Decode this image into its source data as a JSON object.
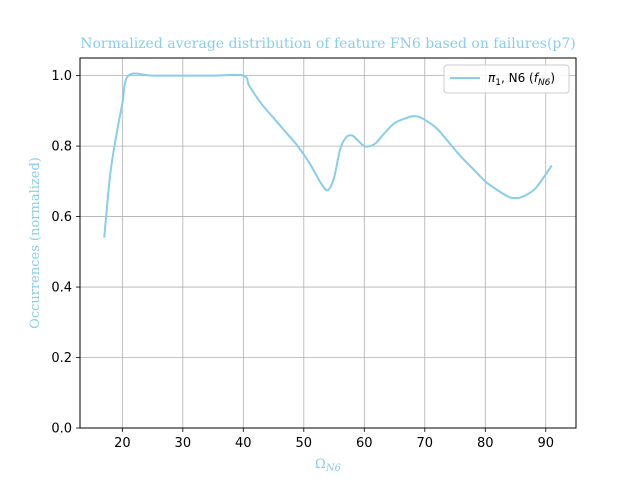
{
  "chart_data": {
    "type": "line",
    "title": "Normalized average distribution of feature FN6 based on failures(p7)",
    "xlabel": "Ω",
    "xlabel_sub": "N6",
    "ylabel": "Occurrences (normalized)",
    "xlim": [
      13,
      95
    ],
    "ylim": [
      0.0,
      1.05
    ],
    "xticks": [
      20,
      30,
      40,
      50,
      60,
      70,
      80,
      90
    ],
    "yticks": [
      0.0,
      0.2,
      0.4,
      0.6,
      0.8,
      1.0
    ],
    "grid": true,
    "legend_position": "top-right",
    "series": [
      {
        "name": "π1, N6 (fN6)",
        "legend_parts": {
          "pi": "π",
          "pi_sub": "1",
          "mid": ", N6 (",
          "f": "f",
          "f_sub": "N6",
          "end": ")"
        },
        "color": "#87ceeb",
        "x": [
          17,
          18,
          19,
          20,
          21,
          25,
          30,
          35,
          40,
          41,
          43,
          45,
          47,
          49,
          51,
          52,
          53,
          54,
          55,
          56,
          57,
          58,
          59,
          60,
          61,
          62,
          63,
          65,
          67,
          68,
          69,
          70,
          72,
          74,
          76,
          78,
          80,
          82,
          84,
          85,
          86,
          88,
          89,
          90,
          91
        ],
        "y": [
          0.54,
          0.72,
          0.83,
          0.92,
          1.0,
          1.0,
          1.0,
          1.0,
          1.0,
          0.97,
          0.92,
          0.88,
          0.84,
          0.8,
          0.75,
          0.72,
          0.69,
          0.675,
          0.71,
          0.79,
          0.825,
          0.83,
          0.815,
          0.8,
          0.8,
          0.81,
          0.83,
          0.865,
          0.88,
          0.885,
          0.883,
          0.875,
          0.85,
          0.81,
          0.77,
          0.735,
          0.7,
          0.675,
          0.655,
          0.653,
          0.655,
          0.675,
          0.695,
          0.72,
          0.745
        ]
      }
    ]
  }
}
